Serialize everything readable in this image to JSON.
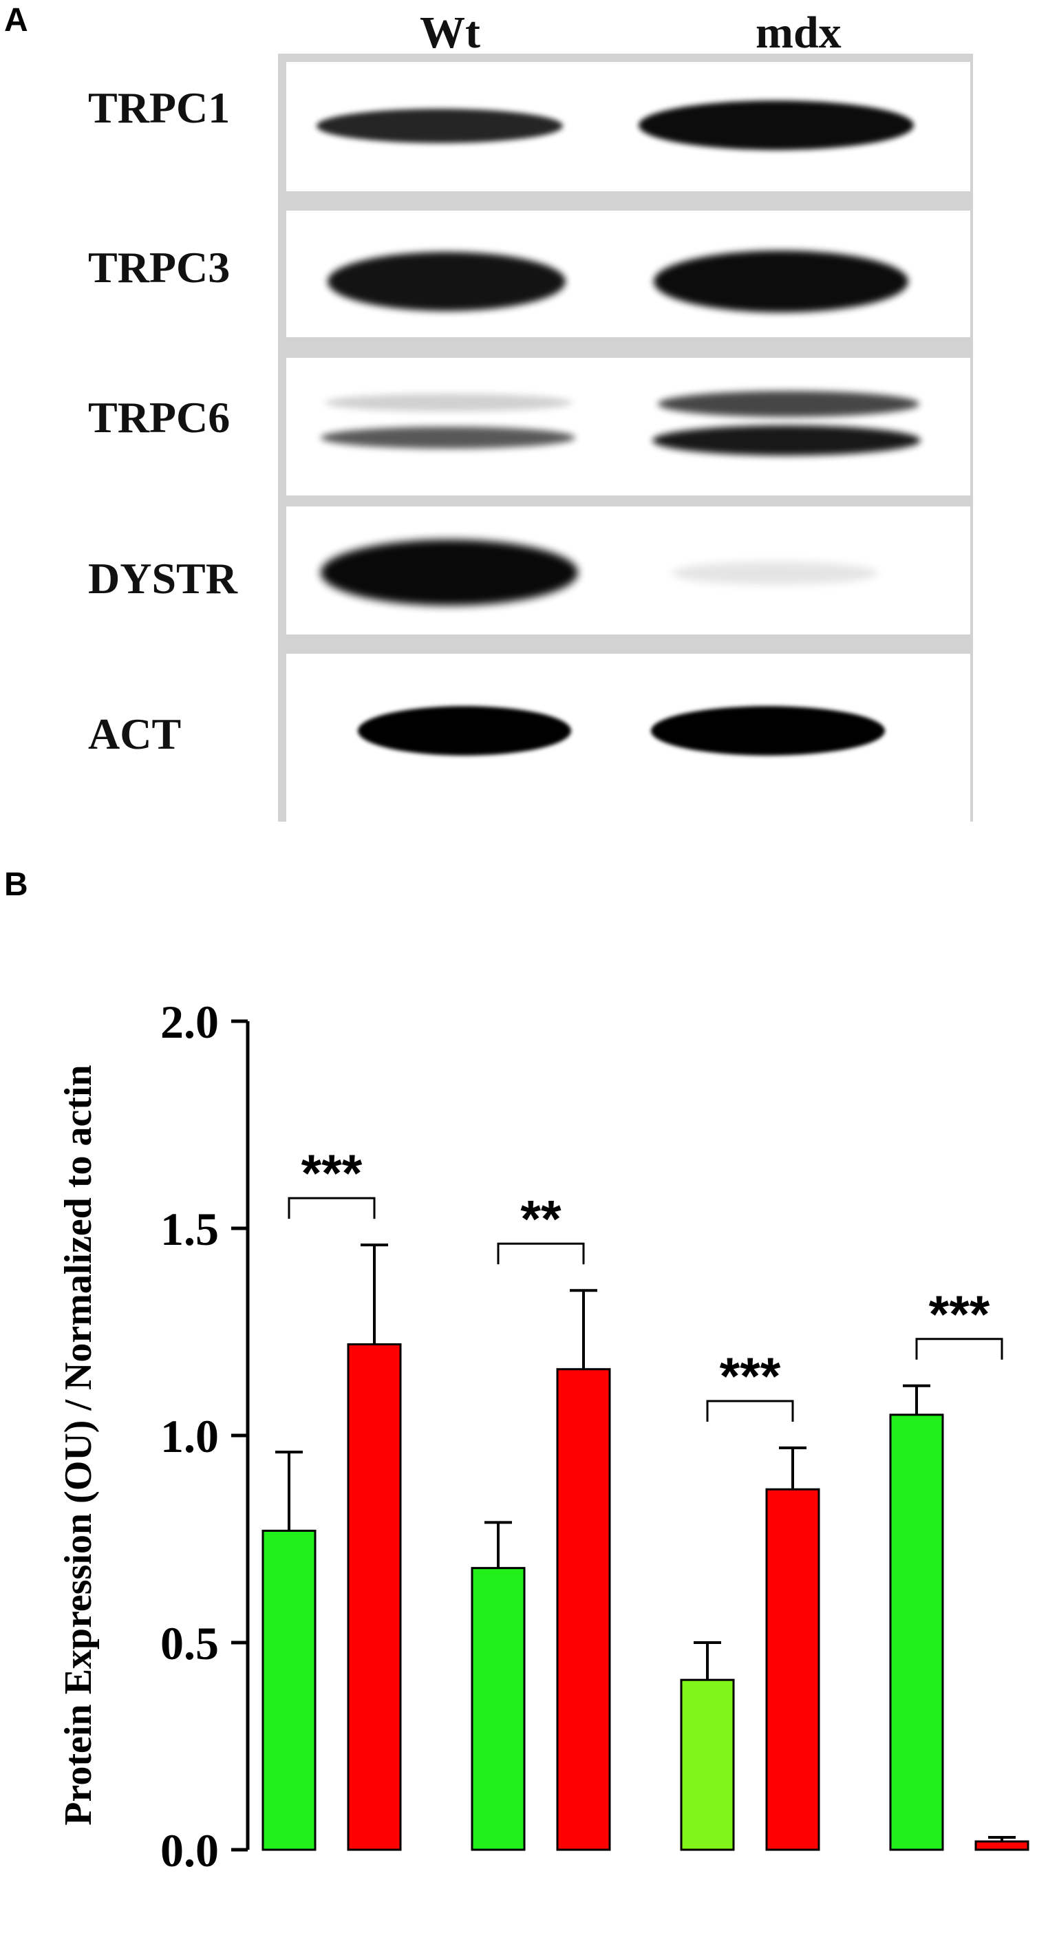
{
  "panel_a": {
    "letter": "A",
    "lanes": [
      "Wt",
      "mdx"
    ],
    "rows": [
      "TRPC1",
      "TRPC3",
      "TRPC6",
      "DYSTR",
      "ACT"
    ]
  },
  "panel_b": {
    "letter": "B"
  },
  "chart_data": {
    "type": "bar",
    "title": "",
    "xlabel": "",
    "ylabel": "Protein Expression (OU) / Normalized to actin",
    "ylim": [
      0,
      2.0
    ],
    "yticks": [
      "0.0",
      "0.5",
      "1.0",
      "1.5",
      "2.0"
    ],
    "grid": false,
    "legend": "none",
    "groups": [
      {
        "bars": [
          {
            "value": 0.77,
            "error": 0.19,
            "color": "#22f01a"
          },
          {
            "value": 1.22,
            "error": 0.24,
            "color": "#ff0000"
          }
        ],
        "significance": "***"
      },
      {
        "bars": [
          {
            "value": 0.68,
            "error": 0.11,
            "color": "#22f01a"
          },
          {
            "value": 1.16,
            "error": 0.19,
            "color": "#ff0000"
          }
        ],
        "significance": "**"
      },
      {
        "bars": [
          {
            "value": 0.41,
            "error": 0.09,
            "color": "#80f51a"
          },
          {
            "value": 0.87,
            "error": 0.1,
            "color": "#ff0000"
          }
        ],
        "significance": "***"
      },
      {
        "bars": [
          {
            "value": 1.05,
            "error": 0.07,
            "color": "#22f01a"
          },
          {
            "value": 0.02,
            "error": 0.01,
            "color": "#ff0000"
          }
        ],
        "significance": "***"
      }
    ]
  }
}
